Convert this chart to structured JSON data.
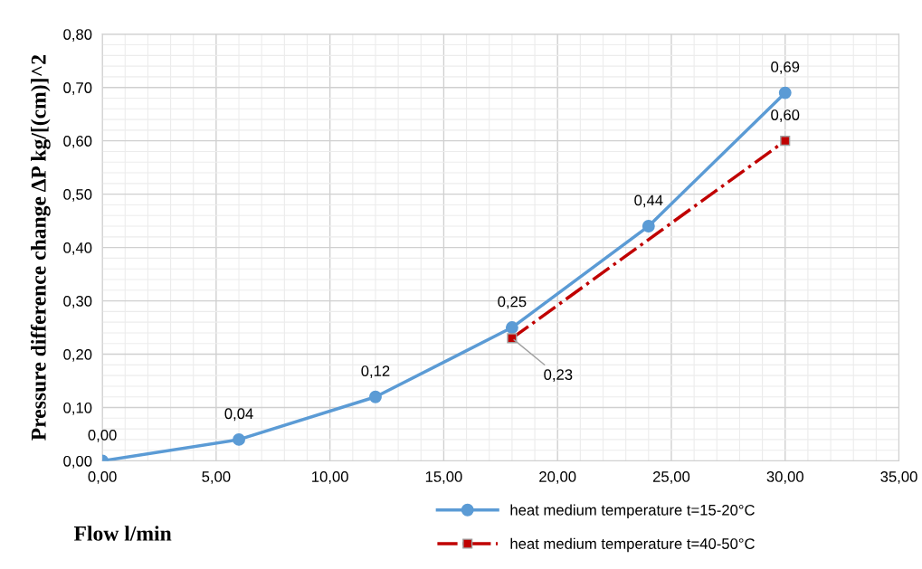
{
  "chart_data": {
    "type": "line",
    "xlabel": "Flow l/min",
    "ylabel": "Pressure difference change ΔP kg/[(cm)]^2",
    "xlim": [
      0,
      35
    ],
    "xticks": [
      {
        "value": 0,
        "label": "0,00"
      },
      {
        "value": 5,
        "label": "5,00"
      },
      {
        "value": 10,
        "label": "10,00"
      },
      {
        "value": 15,
        "label": "15,00"
      },
      {
        "value": 20,
        "label": "20,00"
      },
      {
        "value": 25,
        "label": "25,00"
      },
      {
        "value": 30,
        "label": "30,00"
      },
      {
        "value": 35,
        "label": "35,00"
      }
    ],
    "ylim": [
      0,
      0.8
    ],
    "yticks": [
      {
        "value": 0,
        "label": "0,00"
      },
      {
        "value": 0.1,
        "label": "0,10"
      },
      {
        "value": 0.2,
        "label": "0,20"
      },
      {
        "value": 0.3,
        "label": "0,30"
      },
      {
        "value": 0.4,
        "label": "0,40"
      },
      {
        "value": 0.5,
        "label": "0,50"
      },
      {
        "value": 0.6,
        "label": "0,60"
      },
      {
        "value": 0.7,
        "label": "0,70"
      },
      {
        "value": 0.8,
        "label": "0,80"
      }
    ],
    "grid": true,
    "legend": "bottom",
    "series": [
      {
        "name": "heat medium temperature t=15-20°C",
        "color": "#5b9bd5",
        "marker": "circle",
        "line_style": "solid",
        "x": [
          0,
          6,
          12,
          18,
          24,
          30
        ],
        "values": [
          0,
          0.04,
          0.12,
          0.25,
          0.44,
          0.69
        ],
        "value_labels": [
          "0,00",
          "0,04",
          "0,12",
          "0,25",
          "0,44",
          "0,69"
        ]
      },
      {
        "name": "heat medium temperature t=40-50°C",
        "color": "#c00000",
        "marker": "square",
        "line_style": "dashdot",
        "x": [
          18,
          30
        ],
        "values": [
          0.23,
          0.6
        ],
        "value_labels": [
          "0,23",
          "0,60"
        ]
      }
    ]
  }
}
